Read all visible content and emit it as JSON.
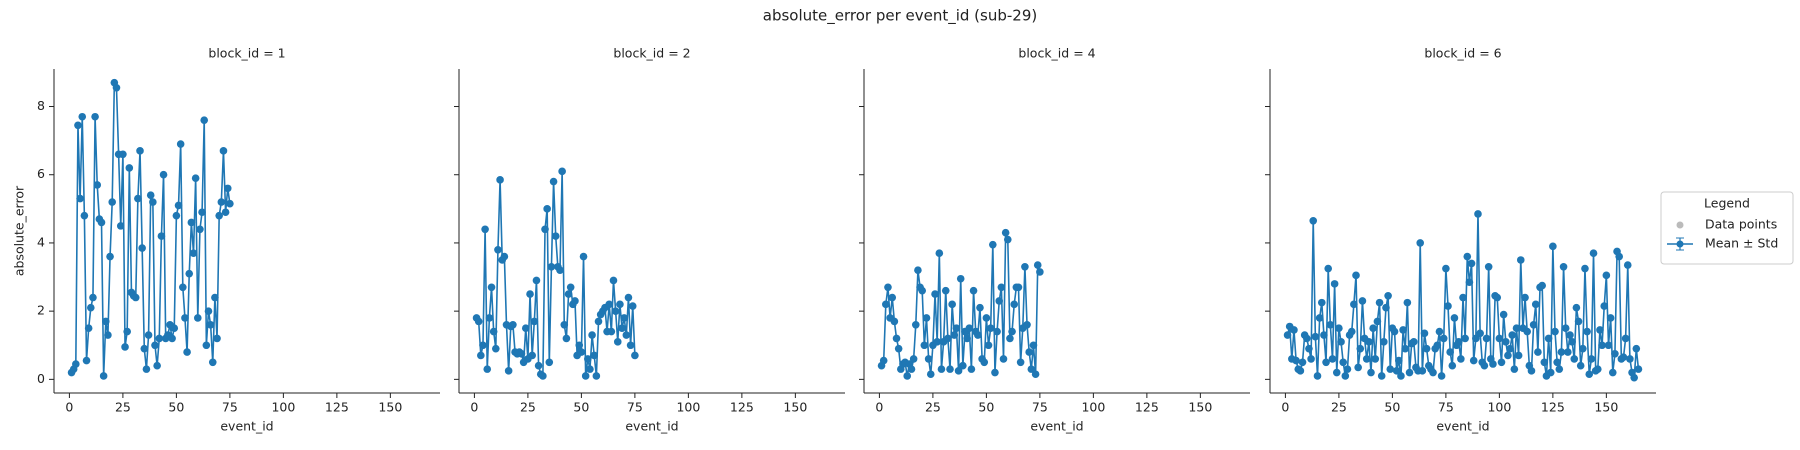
{
  "figure_title": "absolute_error per event_id (sub-29)",
  "legend": {
    "title": "Legend",
    "entries": [
      {
        "name": "Data points",
        "color": "#bbbbbb"
      },
      {
        "name": "Mean ± Std",
        "color": "#1f77b4"
      }
    ]
  },
  "chart_data": [
    {
      "type": "line",
      "title": "block_id = 1",
      "x_label": "event_id",
      "y_label": "absolute_error",
      "color": "#1f77b4",
      "xlim": [
        -7.2,
        173.2
      ],
      "ylim": [
        -0.4,
        9.1
      ],
      "xticks": [
        0,
        25,
        50,
        75,
        100,
        125,
        150
      ],
      "yticks": [
        0,
        2,
        4,
        6,
        8
      ],
      "x": [
        1,
        2,
        3,
        4,
        5,
        6,
        7,
        8,
        9,
        10,
        11,
        12,
        13,
        14,
        15,
        16,
        17,
        18,
        19,
        20,
        21,
        22,
        23,
        24,
        25,
        26,
        27,
        28,
        29,
        30,
        31,
        32,
        33,
        34,
        35,
        36,
        37,
        38,
        39,
        40,
        41,
        42,
        43,
        44,
        45,
        46,
        47,
        48,
        49,
        50,
        51,
        52,
        53,
        54,
        55,
        56,
        57,
        58,
        59,
        60,
        61,
        62,
        63,
        64,
        65,
        66,
        67,
        68,
        69,
        70,
        71,
        72,
        73,
        74,
        75
      ],
      "values": [
        0.2,
        0.3,
        0.45,
        7.45,
        5.3,
        7.7,
        4.8,
        0.55,
        1.5,
        2.1,
        2.4,
        7.7,
        5.7,
        4.7,
        4.6,
        0.1,
        1.7,
        1.3,
        3.6,
        5.2,
        8.7,
        8.55,
        6.6,
        4.5,
        6.6,
        0.95,
        1.4,
        6.2,
        2.55,
        2.45,
        2.4,
        5.3,
        6.7,
        3.85,
        0.9,
        0.3,
        1.3,
        5.4,
        5.2,
        1.0,
        0.4,
        1.2,
        4.2,
        6.0,
        1.2,
        1.3,
        1.6,
        1.2,
        1.5,
        4.8,
        5.1,
        6.9,
        2.7,
        1.8,
        0.8,
        3.1,
        4.6,
        3.7,
        5.9,
        1.8,
        4.4,
        4.9,
        7.6,
        1.0,
        2.0,
        1.6,
        0.5,
        2.4,
        1.2,
        4.8,
        5.2,
        6.7,
        4.9,
        5.6,
        5.15
      ]
    },
    {
      "type": "line",
      "title": "block_id = 2",
      "x_label": "event_id",
      "color": "#1f77b4",
      "xlim": [
        -7.2,
        173.2
      ],
      "ylim": [
        -0.4,
        9.1
      ],
      "xticks": [
        0,
        25,
        50,
        75,
        100,
        125,
        150
      ],
      "x": [
        1,
        2,
        3,
        4,
        5,
        6,
        7,
        8,
        9,
        10,
        11,
        12,
        13,
        14,
        15,
        16,
        17,
        18,
        19,
        20,
        21,
        22,
        23,
        24,
        25,
        26,
        27,
        28,
        29,
        30,
        31,
        32,
        33,
        34,
        35,
        36,
        37,
        38,
        39,
        40,
        41,
        42,
        43,
        44,
        45,
        46,
        47,
        48,
        49,
        50,
        51,
        52,
        53,
        54,
        55,
        56,
        57,
        58,
        59,
        60,
        61,
        62,
        63,
        64,
        65,
        66,
        67,
        68,
        69,
        70,
        71,
        72,
        73,
        74,
        75
      ],
      "values": [
        1.8,
        1.7,
        0.7,
        1.0,
        4.4,
        0.3,
        1.8,
        2.7,
        1.4,
        0.9,
        3.8,
        5.85,
        3.5,
        3.6,
        1.6,
        0.25,
        1.55,
        1.6,
        0.8,
        0.75,
        0.8,
        0.75,
        0.5,
        1.5,
        0.6,
        2.5,
        0.7,
        1.7,
        2.9,
        0.4,
        0.15,
        0.1,
        4.4,
        5.0,
        0.5,
        3.3,
        5.8,
        4.2,
        3.3,
        3.2,
        6.1,
        1.6,
        1.2,
        2.5,
        2.7,
        2.2,
        2.3,
        0.7,
        1.0,
        0.8,
        3.6,
        0.1,
        0.6,
        0.3,
        1.3,
        0.7,
        0.1,
        1.7,
        1.9,
        2.0,
        2.1,
        1.4,
        2.2,
        1.4,
        2.9,
        2.0,
        1.1,
        2.2,
        1.5,
        1.8,
        1.3,
        2.4,
        1.0,
        2.15,
        0.7
      ]
    },
    {
      "type": "line",
      "title": "block_id = 4",
      "x_label": "event_id",
      "color": "#1f77b4",
      "xlim": [
        -7.2,
        173.2
      ],
      "ylim": [
        -0.4,
        9.1
      ],
      "xticks": [
        0,
        25,
        50,
        75,
        100,
        125,
        150
      ],
      "x": [
        1,
        2,
        3,
        4,
        5,
        6,
        7,
        8,
        9,
        10,
        11,
        12,
        13,
        14,
        15,
        16,
        17,
        18,
        19,
        20,
        21,
        22,
        23,
        24,
        25,
        26,
        27,
        28,
        29,
        30,
        31,
        32,
        33,
        34,
        35,
        36,
        37,
        38,
        39,
        40,
        41,
        42,
        43,
        44,
        45,
        46,
        47,
        48,
        49,
        50,
        51,
        52,
        53,
        54,
        55,
        56,
        57,
        58,
        59,
        60,
        61,
        62,
        63,
        64,
        65,
        66,
        67,
        68,
        69,
        70,
        71,
        72,
        73,
        74,
        75
      ],
      "values": [
        0.4,
        0.55,
        2.2,
        2.7,
        1.8,
        2.4,
        1.7,
        1.2,
        0.9,
        0.3,
        0.45,
        0.5,
        0.1,
        0.45,
        0.3,
        0.6,
        1.6,
        3.2,
        2.7,
        2.6,
        1.0,
        1.8,
        0.6,
        0.15,
        1.0,
        2.5,
        1.1,
        3.7,
        0.3,
        1.1,
        2.6,
        1.2,
        0.3,
        2.2,
        1.3,
        1.5,
        0.25,
        2.95,
        0.4,
        1.4,
        1.2,
        1.5,
        0.3,
        2.6,
        1.4,
        1.3,
        2.1,
        0.6,
        0.5,
        1.8,
        1.0,
        1.5,
        3.95,
        0.2,
        1.4,
        2.3,
        2.7,
        0.6,
        4.3,
        4.1,
        1.2,
        1.4,
        2.2,
        2.7,
        2.7,
        0.5,
        1.5,
        3.3,
        1.6,
        0.8,
        0.3,
        1.0,
        0.15,
        3.35,
        3.15
      ]
    },
    {
      "type": "line",
      "title": "block_id = 6",
      "x_label": "event_id",
      "color": "#1f77b4",
      "xlim": [
        -7.2,
        173.2
      ],
      "ylim": [
        -0.4,
        9.1
      ],
      "xticks": [
        0,
        25,
        50,
        75,
        100,
        125,
        150
      ],
      "x": [
        1,
        2,
        3,
        4,
        5,
        6,
        7,
        8,
        9,
        10,
        11,
        12,
        13,
        14,
        15,
        16,
        17,
        18,
        19,
        20,
        21,
        22,
        23,
        24,
        25,
        26,
        27,
        28,
        29,
        30,
        31,
        32,
        33,
        34,
        35,
        36,
        37,
        38,
        39,
        40,
        41,
        42,
        43,
        44,
        45,
        46,
        47,
        48,
        49,
        50,
        51,
        52,
        53,
        54,
        55,
        56,
        57,
        58,
        59,
        60,
        61,
        62,
        63,
        64,
        65,
        66,
        67,
        68,
        69,
        70,
        71,
        72,
        73,
        74,
        75,
        76,
        77,
        78,
        79,
        80,
        81,
        82,
        83,
        84,
        85,
        86,
        87,
        88,
        89,
        90,
        91,
        92,
        93,
        94,
        95,
        96,
        97,
        98,
        99,
        100,
        101,
        102,
        103,
        104,
        105,
        106,
        107,
        108,
        109,
        110,
        111,
        112,
        113,
        114,
        115,
        116,
        117,
        118,
        119,
        120,
        121,
        122,
        123,
        124,
        125,
        126,
        127,
        128,
        129,
        130,
        131,
        132,
        133,
        134,
        135,
        136,
        137,
        138,
        139,
        140,
        141,
        142,
        143,
        144,
        145,
        146,
        147,
        148,
        149,
        150,
        151,
        152,
        153,
        154,
        155,
        156,
        157,
        158,
        159,
        160,
        161,
        162,
        163,
        164,
        165
      ],
      "values": [
        1.3,
        1.55,
        0.6,
        1.45,
        0.55,
        0.3,
        0.25,
        0.5,
        1.3,
        1.2,
        0.9,
        0.6,
        4.65,
        1.25,
        0.1,
        1.8,
        2.25,
        1.3,
        0.5,
        3.25,
        1.6,
        0.6,
        2.8,
        0.2,
        1.5,
        1.1,
        0.5,
        0.1,
        0.3,
        1.3,
        1.4,
        2.2,
        3.05,
        0.35,
        0.9,
        2.3,
        1.2,
        0.6,
        1.1,
        0.2,
        1.5,
        0.6,
        1.7,
        2.25,
        0.1,
        1.1,
        2.1,
        2.45,
        0.3,
        1.5,
        1.4,
        0.25,
        0.55,
        0.1,
        1.45,
        0.9,
        2.25,
        0.2,
        1.05,
        1.1,
        0.35,
        0.25,
        4.0,
        0.25,
        1.35,
        0.9,
        0.4,
        0.3,
        0.2,
        0.9,
        1.0,
        1.4,
        0.1,
        1.2,
        3.25,
        2.15,
        0.8,
        0.4,
        1.8,
        1.0,
        1.1,
        0.6,
        2.4,
        1.2,
        3.6,
        2.85,
        3.4,
        0.55,
        1.2,
        4.85,
        1.35,
        0.5,
        0.4,
        1.2,
        3.3,
        0.6,
        0.45,
        2.45,
        2.4,
        1.2,
        0.5,
        1.9,
        1.1,
        0.7,
        0.9,
        1.3,
        0.3,
        1.5,
        0.7,
        3.5,
        1.5,
        2.4,
        1.4,
        0.4,
        0.25,
        1.6,
        2.2,
        0.8,
        2.7,
        2.75,
        0.5,
        0.1,
        1.2,
        0.2,
        3.9,
        1.4,
        0.5,
        0.3,
        0.8,
        3.3,
        1.5,
        0.8,
        1.3,
        1.1,
        0.6,
        2.1,
        1.7,
        0.4,
        0.9,
        3.25,
        1.4,
        0.15,
        0.6,
        3.7,
        0.25,
        0.3,
        1.45,
        1.0,
        2.15,
        3.05,
        1.0,
        1.8,
        0.2,
        0.75,
        3.75,
        3.6,
        0.6,
        0.65,
        1.2,
        3.35,
        0.6,
        0.2,
        0.05,
        0.9,
        0.3
      ]
    }
  ]
}
